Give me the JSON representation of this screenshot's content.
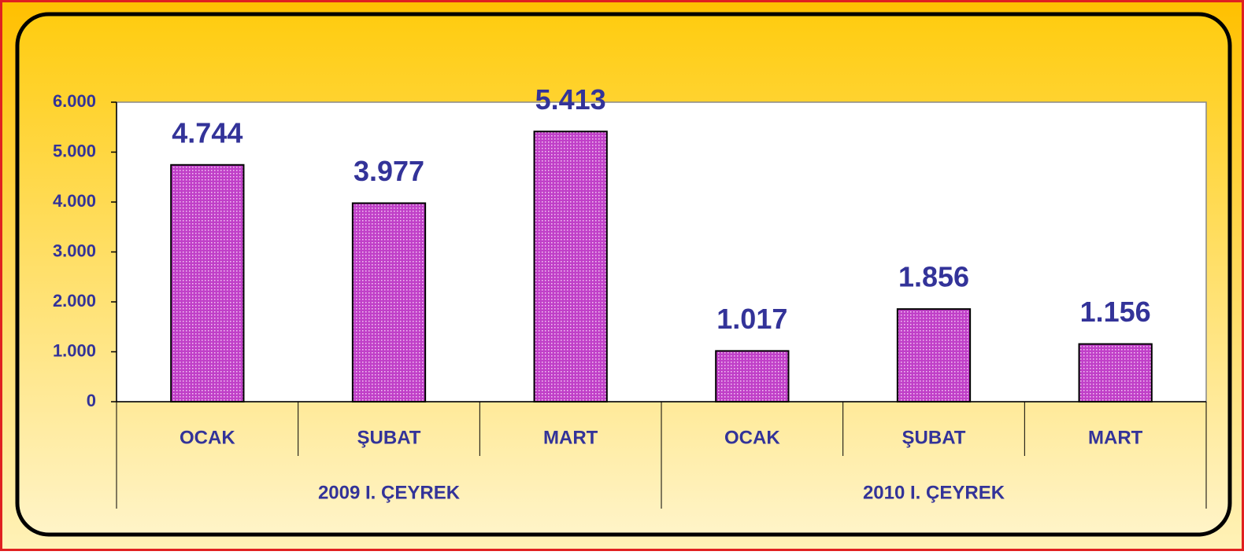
{
  "chart_data": {
    "type": "bar",
    "categories": [
      "OCAK",
      "ŞUBAT",
      "MART",
      "OCAK",
      "ŞUBAT",
      "MART"
    ],
    "groups": [
      "2009 I. ÇEYREK",
      "2010 I. ÇEYREK"
    ],
    "values": [
      4744,
      3977,
      5413,
      1017,
      1856,
      1156
    ],
    "value_labels": [
      "4.744",
      "3.977",
      "5.413",
      "1.017",
      "1.856",
      "1.156"
    ],
    "color": "#c040c8",
    "ylim": [
      0,
      6000
    ],
    "yticks": [
      0,
      {
        "value": 1000,
        "label": "1.000"
      },
      {
        "value": 2000,
        "label": "2.000"
      },
      {
        "value": 3000,
        "label": "3.000"
      },
      {
        "value": 4000,
        "label": "4.000"
      },
      {
        "value": 5000,
        "label": "5.000"
      },
      {
        "value": 6000,
        "label": "6.000"
      }
    ],
    "grid": false
  }
}
